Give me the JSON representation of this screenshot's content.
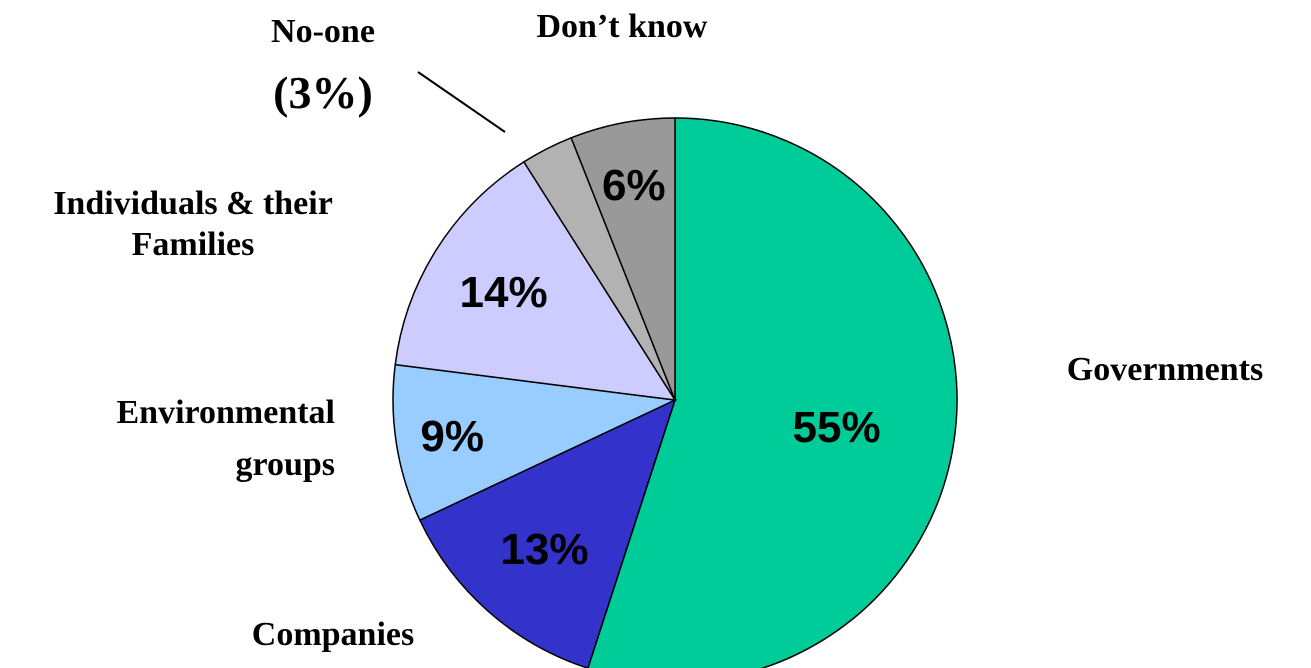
{
  "chart_data": {
    "type": "pie",
    "title": "",
    "slices": [
      {
        "label": "Governments",
        "value": 55,
        "value_label": "55%",
        "color": "#00CC99"
      },
      {
        "label": "Companies",
        "value": 13,
        "value_label": "13%",
        "color": "#3333CC"
      },
      {
        "label": "Environmental groups",
        "value": 9,
        "value_label": "9%",
        "color": "#99CCFF"
      },
      {
        "label": "Individuals & their Families",
        "value": 14,
        "value_label": "14%",
        "color": "#CCCCFF"
      },
      {
        "label": "No-one",
        "value": 3,
        "value_label": "(3%)",
        "color": "#B2B2B2"
      },
      {
        "label": "Don’t know",
        "value": 6,
        "value_label": "6%",
        "color": "#999999"
      }
    ],
    "start": "12 o'clock",
    "direction": "clockwise",
    "legend": "none",
    "label_text": {
      "governments": "Governments",
      "companies": "Companies",
      "environmental_line1": "Environmental",
      "environmental_line2": "groups",
      "individuals_line1": "Individuals & their",
      "individuals_line2": "Families",
      "noone_line1": "No-one",
      "noone_line2": "(3%)",
      "dontknow": "Don’t know"
    }
  }
}
